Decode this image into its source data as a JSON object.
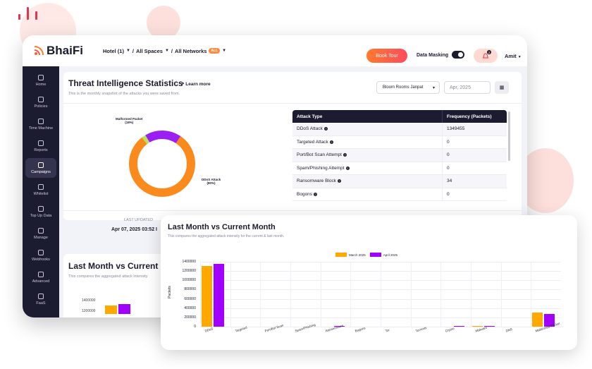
{
  "app": {
    "brand": "BhaiFi",
    "crumbs": [
      {
        "label": "Hotel (1)"
      },
      {
        "label": "All Spaces"
      },
      {
        "label": "All Networks",
        "badge": "ALL"
      }
    ],
    "book_tour": "Book Tour",
    "data_masking": "Data Masking",
    "data_masking_on": true,
    "notifications": "2",
    "user": "Amit"
  },
  "sidebar": [
    {
      "label": "Home",
      "icon": "home-icon"
    },
    {
      "label": "Policies",
      "icon": "policies-icon"
    },
    {
      "label": "Time Machine",
      "icon": "clock-icon"
    },
    {
      "label": "Reports",
      "icon": "reports-icon"
    },
    {
      "label": "Campaigns",
      "icon": "campaigns-icon",
      "active": true
    },
    {
      "label": "Whitelist",
      "icon": "whitelist-icon"
    },
    {
      "label": "Top Up Data",
      "icon": "topup-icon"
    },
    {
      "label": "Manage",
      "icon": "manage-icon"
    },
    {
      "label": "Webhooks",
      "icon": "webhooks-icon"
    },
    {
      "label": "Advanced",
      "icon": "advanced-icon"
    },
    {
      "label": "FaaS",
      "icon": "faas-icon"
    }
  ],
  "threat": {
    "title": "Threat Intelligence Statistics",
    "learn_more": "Learn more",
    "subtitle": "This is the monthly snapshot of the attacks you were saved from.",
    "network_select": "Bloom Rooms Janpat",
    "date_placeholder": "Apr, 2025",
    "donut": {
      "slices": [
        {
          "label": "Malformed Packet",
          "pct_label": "(18%)",
          "value": 18,
          "color": "#9b1ff2"
        },
        {
          "label": "DDoS Attack",
          "pct_label": "(80%)",
          "value": 80,
          "color": "#fb8a1c"
        },
        {
          "label": "",
          "pct_label": "",
          "value": 2,
          "color": "#b6e35a"
        }
      ]
    },
    "last_updated_label": "LAST UPDATED",
    "last_updated_value": "Apr 07, 2025 03:52 I",
    "table": {
      "headers": [
        "Attack Type",
        "Frequency (Packets)"
      ],
      "rows": [
        [
          "DDoS Attack",
          "1349455"
        ],
        [
          "Targeted Attack",
          "0"
        ],
        [
          "Port/Bot Scan Attempt",
          "0"
        ],
        [
          "Spam/Phishing Attempt",
          "0"
        ],
        [
          "Ransomware Block",
          "34"
        ],
        [
          "Bogons",
          "0"
        ]
      ]
    }
  },
  "behind_card": {
    "title": "Last Month vs Current Mo",
    "subtitle": "This compares the aggregated attack intensity",
    "ticks": [
      "1400000",
      "1200000"
    ]
  },
  "chart_data": {
    "type": "bar",
    "title": "Last Month vs Current Month",
    "subtitle": "This compares the aggregated attack intensity for the current & last month.",
    "ylabel": "Packets",
    "ylim": [
      0,
      1400000
    ],
    "yticks": [
      "1400000",
      "1200000",
      "1000000",
      "800000",
      "600000",
      "400000",
      "200000",
      "0"
    ],
    "categories": [
      "DDoS",
      "Targeted",
      "Port/Bot Scan",
      "Spam/Phishing",
      "Ransomware",
      "Bogons",
      "Tor",
      "Torrents",
      "Crypto",
      "Malware",
      "DNS",
      "Malformed Packet"
    ],
    "series": [
      {
        "name": "March 2025",
        "color": "#ffa800",
        "values": [
          1310000,
          0,
          0,
          0,
          0,
          0,
          0,
          0,
          0,
          18000,
          0,
          300000
        ]
      },
      {
        "name": "April 2025",
        "color": "#a100ff",
        "values": [
          1349455,
          0,
          0,
          0,
          34,
          0,
          0,
          0,
          12000,
          20000,
          0,
          270000
        ]
      }
    ],
    "legend": "top-center"
  }
}
